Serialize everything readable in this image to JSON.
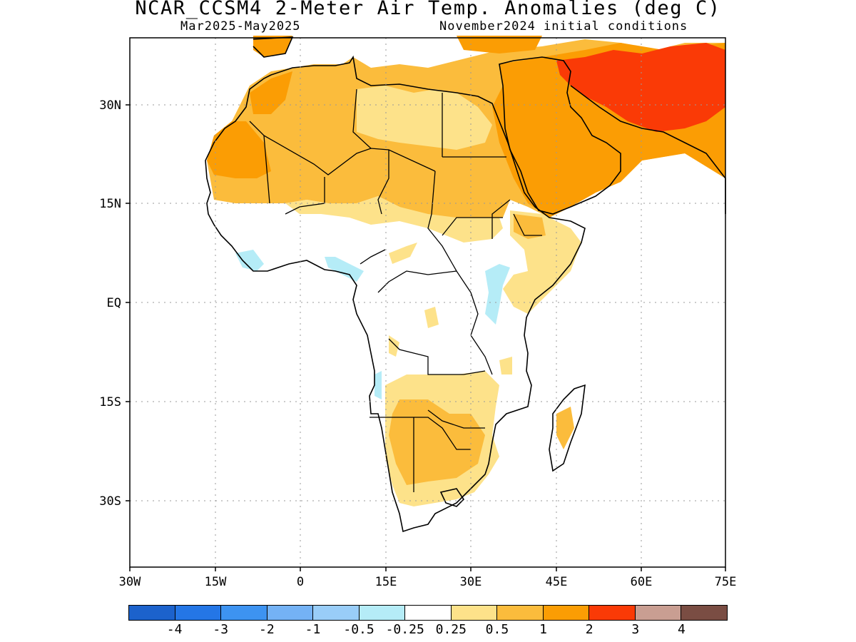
{
  "title": "NCAR_CCSM4 2-Meter Air Temp. Anomalies (deg C)",
  "period": "Mar2025-May2025",
  "init": "November2024 initial conditions",
  "lat_labels": [
    "30N",
    "15N",
    "EQ",
    "15S",
    "30S"
  ],
  "lon_labels": [
    "30W",
    "15W",
    "0",
    "15E",
    "30E",
    "45E",
    "60E",
    "75E"
  ],
  "colorbar": {
    "colors": [
      "#1c62cc",
      "#2476e6",
      "#3d93f1",
      "#74b2f5",
      "#99cdf8",
      "#b5ecf7",
      "#ffffff",
      "#fde28a",
      "#fbbc3c",
      "#fb9d04",
      "#fa3a06",
      "#c99e92",
      "#7a4d43"
    ],
    "labels": [
      "-4",
      "-3",
      "-2",
      "-1",
      "-0.5",
      "-0.25",
      "0.25",
      "0.5",
      "1",
      "2",
      "3",
      "4"
    ]
  },
  "legend_colors": {
    "land_outline": "#000000",
    "ocean": "#ffffff"
  }
}
